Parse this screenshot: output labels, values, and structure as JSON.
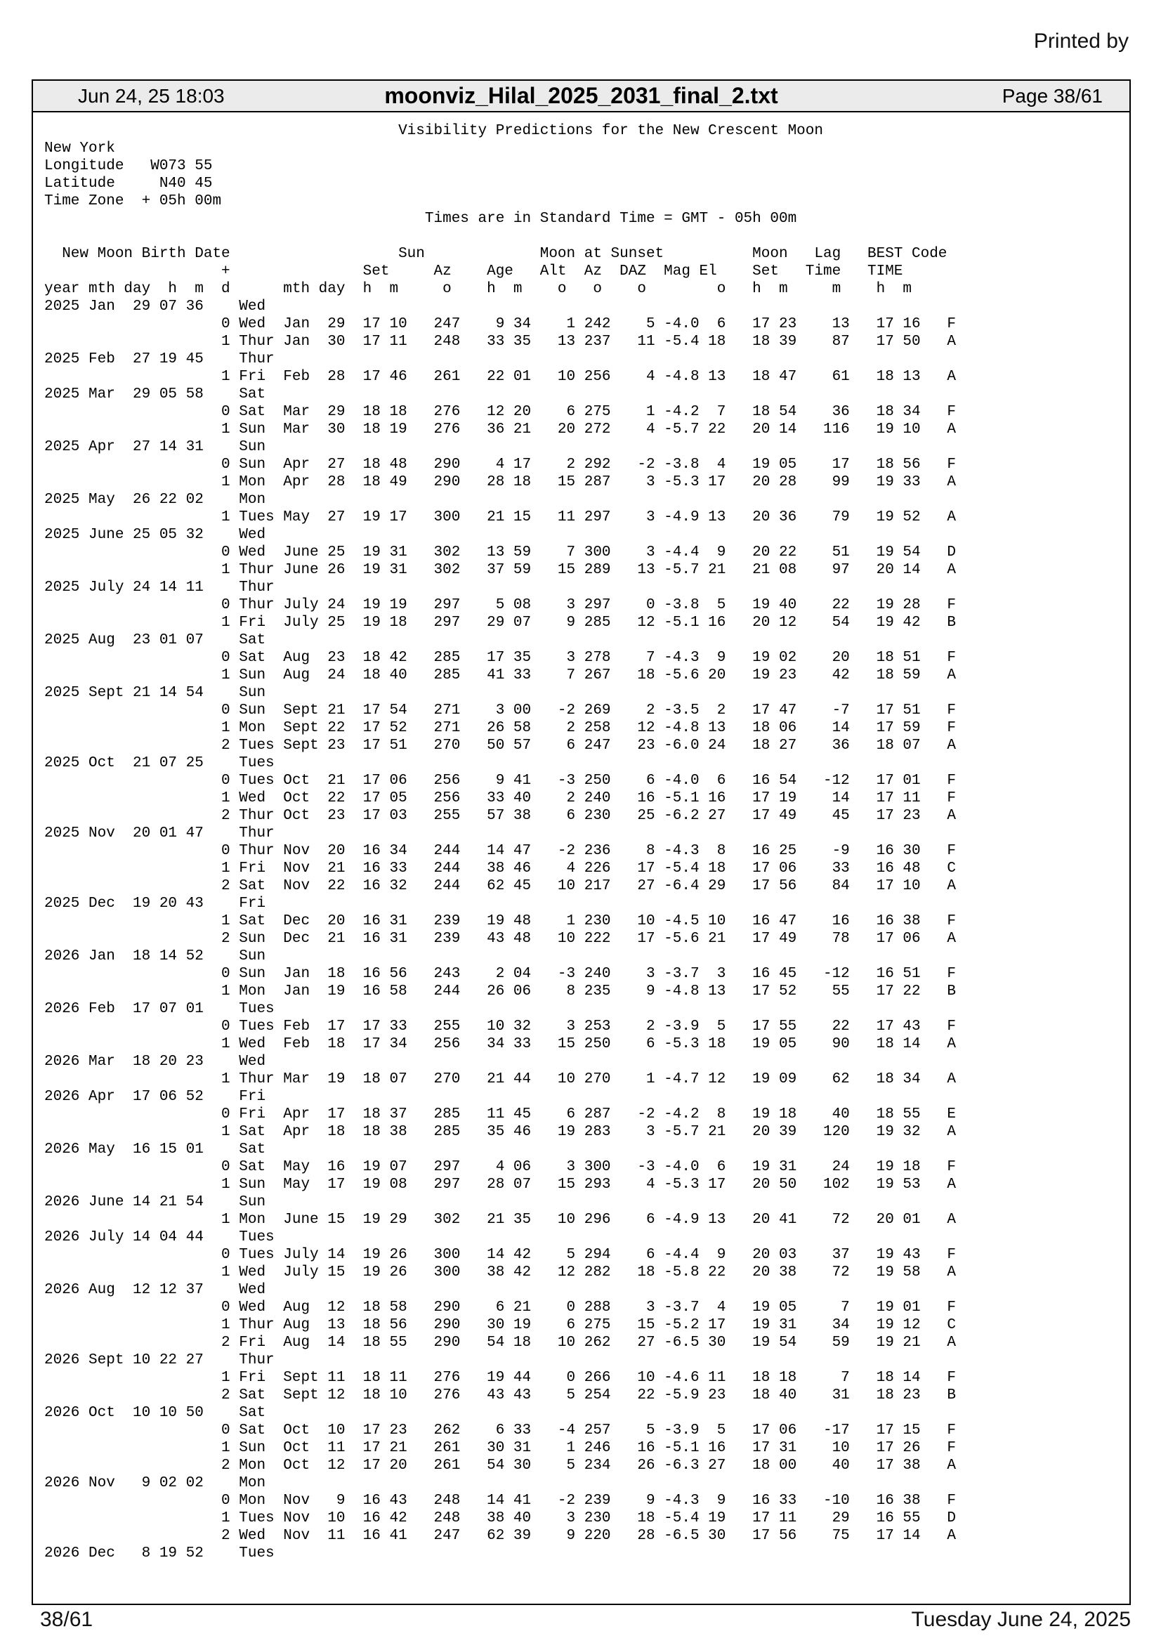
{
  "printed_by": "Printed by",
  "header": {
    "datetime": "Jun 24, 25 18:03",
    "filename": "moonviz_Hilal_2025_2031_final_2.txt",
    "page": "Page 38/61"
  },
  "footer": {
    "page": "38/61",
    "date": "Tuesday June 24, 2025"
  },
  "document": {
    "title": "Visibility Predictions for the New Crescent Moon",
    "location": {
      "name": "New York",
      "longitude": "W073 55",
      "latitude": "N40 45",
      "time_zone": "+ 05h 00m"
    },
    "time_note": "Times are in Standard Time = GMT - 05h 00m",
    "lines": [
      "                                        Visibility Predictions for the New Crescent Moon",
      "New York",
      "Longitude   W073 55",
      "Latitude     N40 45",
      "Time Zone  + 05h 00m",
      "                                           Times are in Standard Time = GMT - 05h 00m",
      "",
      "  New Moon Birth Date                   Sun             Moon at Sunset          Moon   Lag   BEST Code",
      "                    +               Set     Az    Age   Alt  Az  DAZ  Mag El    Set   Time   TIME",
      "year mth day  h  m  d      mth day  h  m     o    h  m    o   o    o        o   h  m     m    h  m",
      "2025 Jan  29 07 36    Wed",
      "                    0 Wed  Jan  29  17 10   247    9 34    1 242    5 -4.0  6   17 23    13   17 16   F",
      "                    1 Thur Jan  30  17 11   248   33 35   13 237   11 -5.4 18   18 39    87   17 50   A",
      "2025 Feb  27 19 45    Thur",
      "                    1 Fri  Feb  28  17 46   261   22 01   10 256    4 -4.8 13   18 47    61   18 13   A",
      "2025 Mar  29 05 58    Sat",
      "                    0 Sat  Mar  29  18 18   276   12 20    6 275    1 -4.2  7   18 54    36   18 34   F",
      "                    1 Sun  Mar  30  18 19   276   36 21   20 272    4 -5.7 22   20 14   116   19 10   A",
      "2025 Apr  27 14 31    Sun",
      "                    0 Sun  Apr  27  18 48   290    4 17    2 292   -2 -3.8  4   19 05    17   18 56   F",
      "                    1 Mon  Apr  28  18 49   290   28 18   15 287    3 -5.3 17   20 28    99   19 33   A",
      "2025 May  26 22 02    Mon",
      "                    1 Tues May  27  19 17   300   21 15   11 297    3 -4.9 13   20 36    79   19 52   A",
      "2025 June 25 05 32    Wed",
      "                    0 Wed  June 25  19 31   302   13 59    7 300    3 -4.4  9   20 22    51   19 54   D",
      "                    1 Thur June 26  19 31   302   37 59   15 289   13 -5.7 21   21 08    97   20 14   A",
      "2025 July 24 14 11    Thur",
      "                    0 Thur July 24  19 19   297    5 08    3 297    0 -3.8  5   19 40    22   19 28   F",
      "                    1 Fri  July 25  19 18   297   29 07    9 285   12 -5.1 16   20 12    54   19 42   B",
      "2025 Aug  23 01 07    Sat",
      "                    0 Sat  Aug  23  18 42   285   17 35    3 278    7 -4.3  9   19 02    20   18 51   F",
      "                    1 Sun  Aug  24  18 40   285   41 33    7 267   18 -5.6 20   19 23    42   18 59   A",
      "2025 Sept 21 14 54    Sun",
      "                    0 Sun  Sept 21  17 54   271    3 00   -2 269    2 -3.5  2   17 47    -7   17 51   F",
      "                    1 Mon  Sept 22  17 52   271   26 58    2 258   12 -4.8 13   18 06    14   17 59   F",
      "                    2 Tues Sept 23  17 51   270   50 57    6 247   23 -6.0 24   18 27    36   18 07   A",
      "2025 Oct  21 07 25    Tues",
      "                    0 Tues Oct  21  17 06   256    9 41   -3 250    6 -4.0  6   16 54   -12   17 01   F",
      "                    1 Wed  Oct  22  17 05   256   33 40    2 240   16 -5.1 16   17 19    14   17 11   F",
      "                    2 Thur Oct  23  17 03   255   57 38    6 230   25 -6.2 27   17 49    45   17 23   A",
      "2025 Nov  20 01 47    Thur",
      "                    0 Thur Nov  20  16 34   244   14 47   -2 236    8 -4.3  8   16 25    -9   16 30   F",
      "                    1 Fri  Nov  21  16 33   244   38 46    4 226   17 -5.4 18   17 06    33   16 48   C",
      "                    2 Sat  Nov  22  16 32   244   62 45   10 217   27 -6.4 29   17 56    84   17 10   A",
      "2025 Dec  19 20 43    Fri",
      "                    1 Sat  Dec  20  16 31   239   19 48    1 230   10 -4.5 10   16 47    16   16 38   F",
      "                    2 Sun  Dec  21  16 31   239   43 48   10 222   17 -5.6 21   17 49    78   17 06   A",
      "2026 Jan  18 14 52    Sun",
      "                    0 Sun  Jan  18  16 56   243    2 04   -3 240    3 -3.7  3   16 45   -12   16 51   F",
      "                    1 Mon  Jan  19  16 58   244   26 06    8 235    9 -4.8 13   17 52    55   17 22   B",
      "2026 Feb  17 07 01    Tues",
      "                    0 Tues Feb  17  17 33   255   10 32    3 253    2 -3.9  5   17 55    22   17 43   F",
      "                    1 Wed  Feb  18  17 34   256   34 33   15 250    6 -5.3 18   19 05    90   18 14   A",
      "2026 Mar  18 20 23    Wed",
      "                    1 Thur Mar  19  18 07   270   21 44   10 270    1 -4.7 12   19 09    62   18 34   A",
      "2026 Apr  17 06 52    Fri",
      "                    0 Fri  Apr  17  18 37   285   11 45    6 287   -2 -4.2  8   19 18    40   18 55   E",
      "                    1 Sat  Apr  18  18 38   285   35 46   19 283    3 -5.7 21   20 39   120   19 32   A",
      "2026 May  16 15 01    Sat",
      "                    0 Sat  May  16  19 07   297    4 06    3 300   -3 -4.0  6   19 31    24   19 18   F",
      "                    1 Sun  May  17  19 08   297   28 07   15 293    4 -5.3 17   20 50   102   19 53   A",
      "2026 June 14 21 54    Sun",
      "                    1 Mon  June 15  19 29   302   21 35   10 296    6 -4.9 13   20 41    72   20 01   A",
      "2026 July 14 04 44    Tues",
      "                    0 Tues July 14  19 26   300   14 42    5 294    6 -4.4  9   20 03    37   19 43   F",
      "                    1 Wed  July 15  19 26   300   38 42   12 282   18 -5.8 22   20 38    72   19 58   A",
      "2026 Aug  12 12 37    Wed",
      "                    0 Wed  Aug  12  18 58   290    6 21    0 288    3 -3.7  4   19 05     7   19 01   F",
      "                    1 Thur Aug  13  18 56   290   30 19    6 275   15 -5.2 17   19 31    34   19 12   C",
      "                    2 Fri  Aug  14  18 55   290   54 18   10 262   27 -6.5 30   19 54    59   19 21   A",
      "2026 Sept 10 22 27    Thur",
      "                    1 Fri  Sept 11  18 11   276   19 44    0 266   10 -4.6 11   18 18     7   18 14   F",
      "                    2 Sat  Sept 12  18 10   276   43 43    5 254   22 -5.9 23   18 40    31   18 23   B",
      "2026 Oct  10 10 50    Sat",
      "                    0 Sat  Oct  10  17 23   262    6 33   -4 257    5 -3.9  5   17 06   -17   17 15   F",
      "                    1 Sun  Oct  11  17 21   261   30 31    1 246   16 -5.1 16   17 31    10   17 26   F",
      "                    2 Mon  Oct  12  17 20   261   54 30    5 234   26 -6.3 27   18 00    40   17 38   A",
      "2026 Nov   9 02 02    Mon",
      "                    0 Mon  Nov   9  16 43   248   14 41   -2 239    9 -4.3  9   16 33   -10   16 38   F",
      "                    1 Tues Nov  10  16 42   248   38 40    3 230   18 -5.4 19   17 11    29   16 55   D",
      "                    2 Wed  Nov  11  16 41   247   62 39    9 220   28 -6.5 30   17 56    75   17 14   A",
      "2026 Dec   8 19 52    Tues"
    ]
  }
}
